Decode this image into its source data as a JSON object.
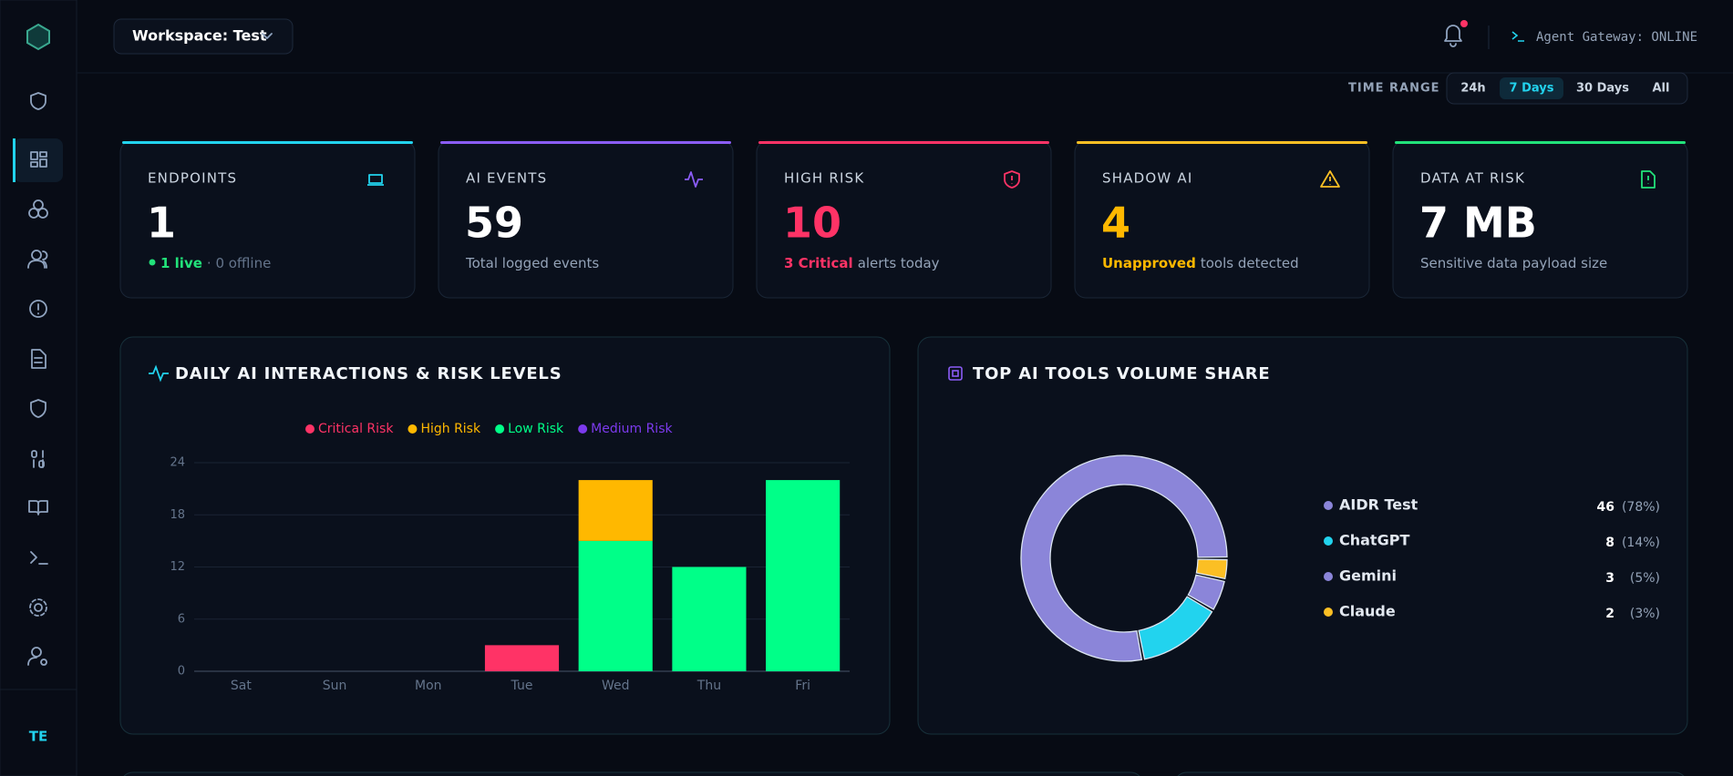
{
  "header": {
    "workspace": "Workspace: Test",
    "gateway": "Agent Gateway: ONLINE",
    "time_range_label": "TIME RANGE",
    "time_ranges": [
      "24h",
      "7 Days",
      "30 Days",
      "All"
    ],
    "active_range": 1
  },
  "user": {
    "initials": "TE"
  },
  "cards": [
    {
      "label": "ENDPOINTS",
      "value": 1,
      "note_highlight": "1 live",
      "note": "· 0 offline",
      "accent": "#22d3ee",
      "value_color": "#ffffff",
      "highlight_color": "#22e27a"
    },
    {
      "label": "AI EVENTS",
      "value": 59,
      "note": "Total logged events",
      "accent": "#8b5cf6",
      "value_color": "#ffffff"
    },
    {
      "label": "HIGH RISK",
      "value": 10,
      "note_highlight": "3 Critical",
      "note": "alerts today",
      "accent": "#ff3366",
      "value_color": "#ff3366",
      "highlight_color": "#ff3366"
    },
    {
      "label": "SHADOW AI",
      "value": 4,
      "note_highlight": "Unapproved",
      "note": "tools detected",
      "accent": "#fbbf24",
      "value_color": "#ffb800",
      "highlight_color": "#ffb800"
    },
    {
      "label": "DATA AT RISK",
      "value": "7 MB",
      "note": "Sensitive data payload size",
      "accent": "#22e27a",
      "value_color": "#ffffff"
    }
  ],
  "chart_data": [
    {
      "type": "bar",
      "title": "DAILY AI INTERACTIONS & RISK LEVELS",
      "categories": [
        "Sat",
        "Sun",
        "Mon",
        "Tue",
        "Wed",
        "Thu",
        "Fri"
      ],
      "series": [
        {
          "name": "Critical Risk",
          "color": "#ff3366",
          "values": [
            0,
            0,
            0,
            3,
            0,
            0,
            0
          ]
        },
        {
          "name": "High Risk",
          "color": "#ffb800",
          "values": [
            0,
            0,
            0,
            0,
            7,
            0,
            0
          ]
        },
        {
          "name": "Low Risk",
          "color": "#00ff88",
          "values": [
            0,
            0,
            0,
            0,
            15,
            12,
            22
          ]
        },
        {
          "name": "Medium Risk",
          "color": "#7c3aed",
          "values": [
            0,
            0,
            0,
            0,
            0,
            0,
            0
          ]
        }
      ],
      "stacked": true,
      "ylim": [
        0,
        24
      ],
      "yticks": [
        0,
        6,
        12,
        18,
        24
      ],
      "grid": true,
      "legend": "top"
    },
    {
      "type": "pie",
      "title": "TOP AI TOOLS VOLUME SHARE",
      "categories": [
        "AIDR Test",
        "ChatGPT",
        "Gemini",
        "Claude"
      ],
      "values": [
        46,
        8,
        3,
        2
      ],
      "percents": [
        {
          "value": 78,
          "label": "(78%)"
        },
        {
          "value": 14,
          "label": "(14%)"
        },
        {
          "value": 5,
          "label": "(5%)"
        },
        {
          "value": 3,
          "label": "(3%)"
        }
      ],
      "colors": [
        "#8b85d9",
        "#22d3ee",
        "#8b85d9",
        "#fbbf24"
      ],
      "donut": true,
      "legend": "right"
    }
  ]
}
